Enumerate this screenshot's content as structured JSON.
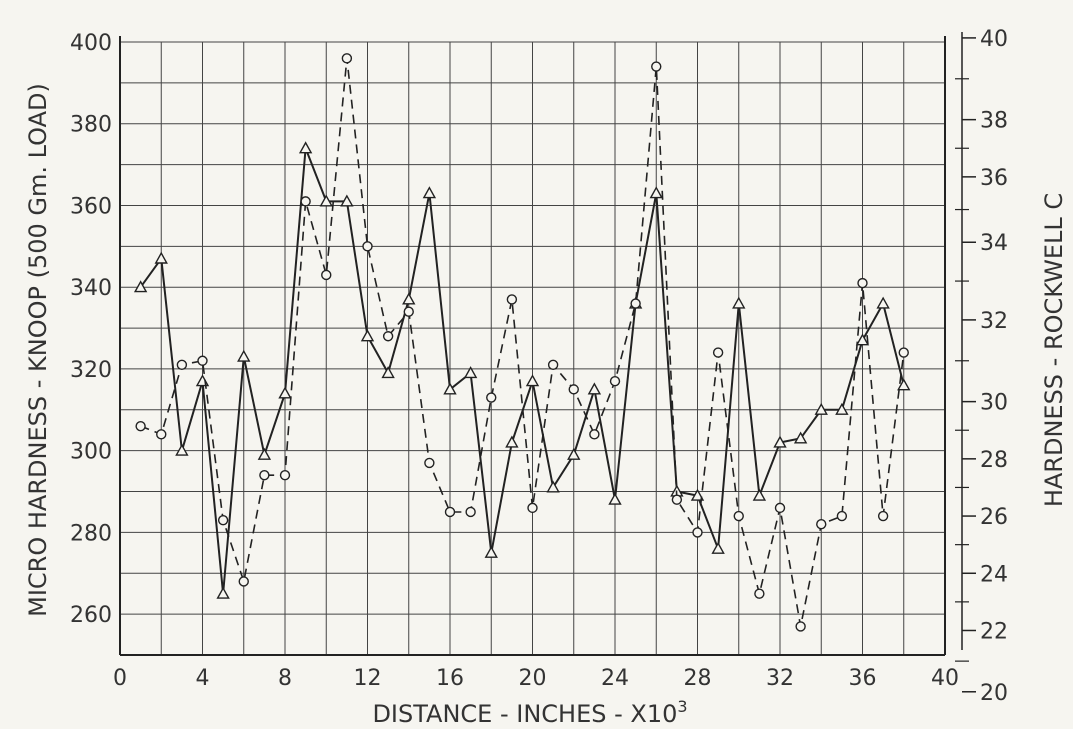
{
  "chart_data": {
    "type": "line",
    "title": "",
    "xlabel": "DISTANCE - INCHES - X10",
    "xlabel_sup": "3",
    "ylabel": "MICRO HARDNESS - KNOOP (500 Gm. LOAD)",
    "ylabel_right": "HARDNESS - ROCKWELL C",
    "xlim": [
      0,
      40
    ],
    "ylim": [
      250,
      400
    ],
    "x_ticks": [
      "0",
      "4",
      "8",
      "12",
      "16",
      "20",
      "24",
      "28",
      "32",
      "36",
      "40"
    ],
    "y_ticks": [
      "260",
      "280",
      "300",
      "320",
      "340",
      "360",
      "380",
      "400"
    ],
    "y2_ticks": [
      {
        "label": "20",
        "knoop": 241
      },
      {
        "label": "22",
        "knoop": 256
      },
      {
        "label": "24",
        "knoop": 270
      },
      {
        "label": "26",
        "knoop": 284
      },
      {
        "label": "28",
        "knoop": 298
      },
      {
        "label": "30",
        "knoop": 312
      },
      {
        "label": "32",
        "knoop": 332
      },
      {
        "label": "34",
        "knoop": 351
      },
      {
        "label": "36",
        "knoop": 367
      },
      {
        "label": "38",
        "knoop": 381
      },
      {
        "label": "40",
        "knoop": 401
      }
    ],
    "grid": true,
    "series": [
      {
        "marker": "triangle",
        "line": "solid",
        "x": [
          1,
          2,
          3,
          4,
          5,
          6,
          7,
          8,
          9,
          10,
          11,
          12,
          13,
          14,
          15,
          16,
          17,
          18,
          19,
          20,
          21,
          22,
          23,
          24,
          25,
          26,
          27,
          28,
          29,
          30,
          31,
          32,
          33,
          34,
          35,
          36,
          37,
          38
        ],
        "values": [
          340,
          347,
          300,
          317,
          265,
          323,
          299,
          314,
          374,
          361,
          361,
          328,
          319,
          337,
          363,
          315,
          319,
          275,
          302,
          317,
          291,
          299,
          315,
          288,
          336,
          363,
          290,
          289,
          276,
          336,
          289,
          302,
          303,
          310,
          310,
          327,
          336,
          316
        ]
      },
      {
        "marker": "circle",
        "line": "dashed",
        "x": [
          1,
          2,
          3,
          4,
          5,
          6,
          7,
          8,
          9,
          10,
          11,
          12,
          13,
          14,
          15,
          16,
          17,
          18,
          19,
          20,
          21,
          22,
          23,
          24,
          25,
          26,
          27,
          28,
          29,
          30,
          31,
          32,
          33,
          34,
          35,
          36,
          37,
          38
        ],
        "values": [
          306,
          304,
          321,
          322,
          283,
          268,
          294,
          294,
          361,
          343,
          396,
          350,
          328,
          334,
          297,
          285,
          285,
          313,
          337,
          286,
          321,
          315,
          304,
          317,
          336,
          394,
          288,
          280,
          324,
          284,
          265,
          286,
          257,
          282,
          284,
          341,
          284,
          324
        ]
      }
    ]
  }
}
